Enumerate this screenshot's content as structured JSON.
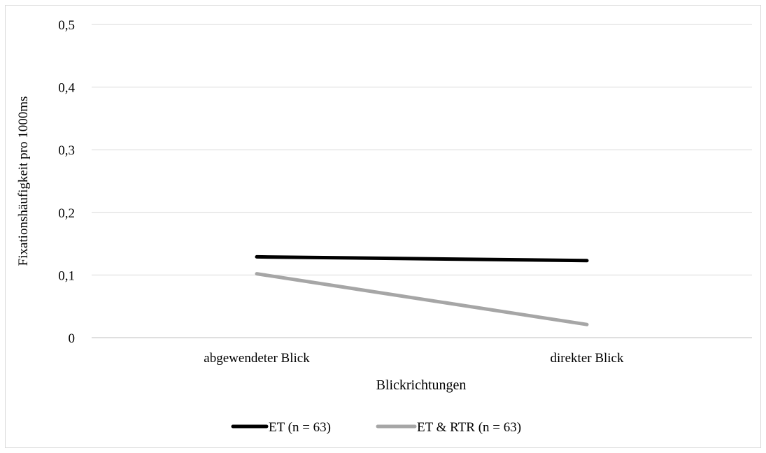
{
  "chart_data": {
    "type": "line",
    "title": "",
    "xlabel": "Blickrichtungen",
    "ylabel": "Fixationshäufigkeit pro 1000ms",
    "categories": [
      "abgewendeter Blick",
      "direkter Blick"
    ],
    "ylim": [
      0,
      0.5
    ],
    "yticks": [
      0,
      0.1,
      0.2,
      0.3,
      0.4,
      0.5
    ],
    "ytick_labels": [
      "0",
      "0,1",
      "0,2",
      "0,3",
      "0,4",
      "0,5"
    ],
    "grid": true,
    "legend_position": "bottom",
    "series": [
      {
        "name": "ET (n = 63)",
        "values": [
          0.129,
          0.123
        ],
        "color": "#000000"
      },
      {
        "name": "ET & RTR (n = 63)",
        "values": [
          0.102,
          0.021
        ],
        "color": "#a6a6a6"
      }
    ]
  }
}
